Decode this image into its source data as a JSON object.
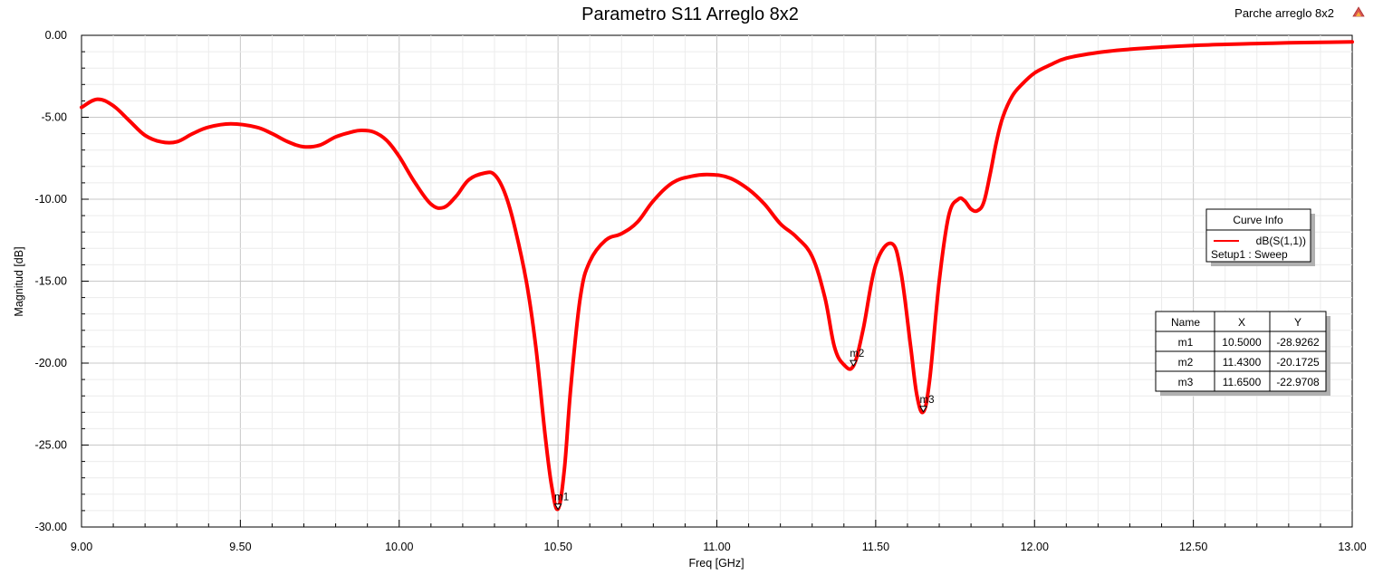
{
  "report_label": "Parche arreglo 8x2",
  "chart_data": {
    "type": "line",
    "title": "Parametro S11 Arreglo 8x2",
    "xlabel": "Freq [GHz]",
    "ylabel": "Magnitud [dB]",
    "xlim": [
      9.0,
      13.0
    ],
    "ylim": [
      -30.0,
      0.0
    ],
    "x_ticks": [
      "9.00",
      "9.50",
      "10.00",
      "10.50",
      "11.00",
      "11.50",
      "12.00",
      "12.50",
      "13.00"
    ],
    "y_ticks": [
      "0.00",
      "-5.00",
      "-10.00",
      "-15.00",
      "-20.00",
      "-25.00",
      "-30.00"
    ],
    "grid": true,
    "series": [
      {
        "name": "dB(S(1,1))",
        "color": "#ff0000",
        "x": [
          9.0,
          9.05,
          9.1,
          9.15,
          9.2,
          9.25,
          9.3,
          9.35,
          9.4,
          9.47,
          9.55,
          9.6,
          9.65,
          9.7,
          9.75,
          9.8,
          9.85,
          9.88,
          9.92,
          9.96,
          10.0,
          10.05,
          10.1,
          10.14,
          10.18,
          10.22,
          10.27,
          10.3,
          10.33,
          10.36,
          10.4,
          10.43,
          10.46,
          10.48,
          10.5,
          10.52,
          10.54,
          10.57,
          10.6,
          10.65,
          10.7,
          10.75,
          10.8,
          10.86,
          10.92,
          10.98,
          11.04,
          11.1,
          11.15,
          11.2,
          11.25,
          11.3,
          11.34,
          11.37,
          11.4,
          11.43,
          11.46,
          11.5,
          11.55,
          11.58,
          11.61,
          11.63,
          11.65,
          11.67,
          11.7,
          11.73,
          11.76,
          11.78,
          11.8,
          11.82,
          11.84,
          11.86,
          11.88,
          11.9,
          11.93,
          11.96,
          12.0,
          12.05,
          12.1,
          12.2,
          12.3,
          12.4,
          12.5,
          12.6,
          12.7,
          12.8,
          12.9,
          13.0
        ],
        "y": [
          -4.4,
          -3.9,
          -4.3,
          -5.2,
          -6.1,
          -6.5,
          -6.5,
          -6.0,
          -5.6,
          -5.4,
          -5.6,
          -6.0,
          -6.5,
          -6.8,
          -6.7,
          -6.2,
          -5.9,
          -5.8,
          -5.9,
          -6.4,
          -7.4,
          -9.0,
          -10.3,
          -10.5,
          -9.8,
          -8.8,
          -8.4,
          -8.5,
          -9.5,
          -11.4,
          -15.0,
          -19.0,
          -24.5,
          -27.5,
          -28.9,
          -26.5,
          -21.5,
          -16.0,
          -13.8,
          -12.5,
          -12.1,
          -11.4,
          -10.1,
          -9.0,
          -8.6,
          -8.5,
          -8.7,
          -9.4,
          -10.3,
          -11.5,
          -12.3,
          -13.5,
          -16.0,
          -19.0,
          -20.1,
          -20.17,
          -18.0,
          -14.0,
          -12.7,
          -14.5,
          -19.0,
          -22.0,
          -22.97,
          -21.0,
          -15.0,
          -11.0,
          -10.0,
          -10.1,
          -10.6,
          -10.7,
          -10.2,
          -8.5,
          -6.5,
          -5.0,
          -3.7,
          -3.0,
          -2.3,
          -1.8,
          -1.4,
          -1.05,
          -0.85,
          -0.72,
          -0.62,
          -0.55,
          -0.5,
          -0.46,
          -0.43,
          -0.4
        ]
      }
    ],
    "curve_info": {
      "header": "Curve Info",
      "entry": "dB(S(1,1))",
      "setup": "Setup1 : Sweep"
    },
    "markers_table": {
      "columns": [
        "Name",
        "X",
        "Y"
      ],
      "rows": [
        {
          "name": "m1",
          "x": "10.5000",
          "y": "-28.9262"
        },
        {
          "name": "m2",
          "x": "11.4300",
          "y": "-20.1725"
        },
        {
          "name": "m3",
          "x": "11.6500",
          "y": "-22.9708"
        }
      ]
    },
    "markers": [
      {
        "label": "m1",
        "x": 10.5,
        "y": -28.9262
      },
      {
        "label": "m2",
        "x": 11.43,
        "y": -20.1725
      },
      {
        "label": "m3",
        "x": 11.65,
        "y": -22.9708
      }
    ]
  }
}
